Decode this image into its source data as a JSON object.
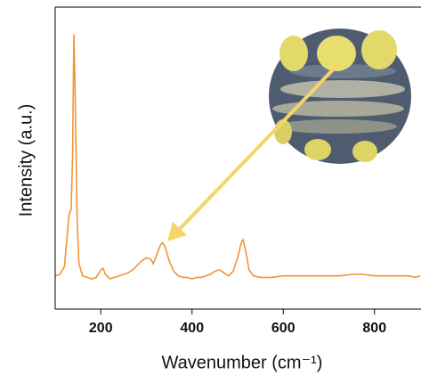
{
  "chart_data": {
    "type": "line",
    "x_label": "Wavenumber (cm⁻¹)",
    "y_label": "Intensity (a.u.)",
    "color": "#ef9535",
    "x": [
      100,
      110,
      120,
      125,
      130,
      135,
      138,
      141,
      144,
      148,
      152,
      160,
      170,
      180,
      190,
      200,
      205,
      210,
      220,
      230,
      240,
      250,
      260,
      270,
      280,
      290,
      300,
      310,
      315,
      320,
      330,
      335,
      340,
      350,
      360,
      370,
      380,
      390,
      400,
      410,
      420,
      430,
      440,
      450,
      460,
      470,
      480,
      490,
      500,
      508,
      512,
      518,
      525,
      535,
      550,
      575,
      600,
      625,
      650,
      675,
      700,
      725,
      750,
      775,
      800,
      825,
      850,
      875,
      890,
      900
    ],
    "values": [
      11,
      11.5,
      14,
      22,
      31,
      33,
      50,
      91,
      70,
      30,
      15,
      11,
      10.5,
      10,
      10.5,
      13,
      13.5,
      11.5,
      10,
      10.5,
      11,
      11.5,
      12,
      13,
      14.5,
      16,
      17,
      16.5,
      15,
      17,
      21,
      22,
      21,
      16,
      12.5,
      11,
      10.5,
      10.5,
      10,
      10.5,
      10.5,
      11,
      11.5,
      12.5,
      13,
      12,
      11,
      12.5,
      17,
      22,
      23,
      19,
      13,
      11,
      10.5,
      10.5,
      11,
      11,
      11,
      11,
      11,
      11,
      11.5,
      11.5,
      11,
      11,
      11,
      11,
      10.5,
      11
    ],
    "xlim": [
      100,
      900
    ],
    "ylim": [
      0,
      100
    ],
    "xticks": [
      200,
      400,
      600,
      800
    ]
  }
}
